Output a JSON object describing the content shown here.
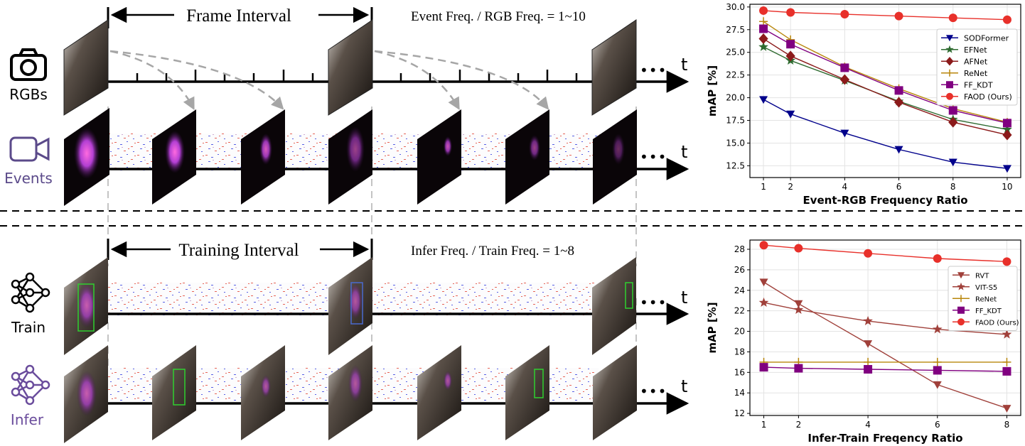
{
  "top": {
    "interval_label": "Frame Interval",
    "ratio_text": "Event Freq. / RGB Freq. = 1~10",
    "row1_label": "RGBs",
    "row2_label": "Events",
    "t_label": "t",
    "dots": "•••"
  },
  "bottom": {
    "interval_label": "Training Interval",
    "ratio_text": "Infer Freq. / Train Freq. = 1~8",
    "row1_label": "Train",
    "row2_label": "Infer",
    "t_label": "t",
    "dots": "•••"
  },
  "colors": {
    "events_purple": "#5b4a8a",
    "infer_purple": "#6a4c9c",
    "arrow_gray": "#a6a6a6"
  },
  "icons": [
    "camera-icon",
    "event-camera-icon",
    "neural-network-icon",
    "neural-network-purple-icon"
  ],
  "chart_data": [
    {
      "type": "line",
      "xlabel": "Event-RGB Frequency Ratio",
      "ylabel": "mAP [%]",
      "x": [
        1,
        2,
        4,
        6,
        8,
        10
      ],
      "xticks": [
        1,
        2,
        4,
        6,
        8,
        10
      ],
      "xlim": [
        0.5,
        10.5
      ],
      "ylim": [
        11.2,
        30.3
      ],
      "yticks": [
        12.5,
        15.0,
        17.5,
        20.0,
        22.5,
        25.0,
        27.5,
        30.0
      ],
      "grid": true,
      "legend_position": "right",
      "series": [
        {
          "name": "SODFormer",
          "marker": "tri-down",
          "color": "#00008b",
          "values": [
            19.8,
            18.2,
            16.1,
            14.3,
            12.9,
            12.2
          ]
        },
        {
          "name": "EFNet",
          "marker": "star",
          "color": "#2e6b30",
          "values": [
            25.6,
            24.1,
            21.9,
            19.6,
            17.6,
            16.5
          ]
        },
        {
          "name": "AFNet",
          "marker": "diamond",
          "color": "#8b1a1a",
          "values": [
            26.5,
            24.6,
            22.0,
            19.5,
            17.3,
            15.9
          ]
        },
        {
          "name": "ReNet",
          "marker": "plus",
          "color": "#b8860b",
          "values": [
            28.4,
            26.4,
            23.4,
            21.0,
            18.8,
            17.3
          ]
        },
        {
          "name": "FF_KDT",
          "marker": "square",
          "color": "#800080",
          "values": [
            27.6,
            25.9,
            23.3,
            20.8,
            18.6,
            17.2
          ]
        },
        {
          "name": "FAOD (Ours)",
          "marker": "circle",
          "color": "#e8302a",
          "values": [
            29.6,
            29.4,
            29.2,
            29.0,
            28.8,
            28.6
          ]
        }
      ]
    },
    {
      "type": "line",
      "xlabel": "Infer-Train Freqency Ratio",
      "ylabel": "mAP [%]",
      "x": [
        1,
        2,
        4,
        6,
        8
      ],
      "xticks": [
        1,
        2,
        4,
        6,
        8
      ],
      "xlim": [
        0.6,
        8.4
      ],
      "ylim": [
        11.8,
        28.9
      ],
      "yticks": [
        12,
        14,
        16,
        18,
        20,
        22,
        24,
        26,
        28
      ],
      "grid": true,
      "legend_position": "right",
      "series": [
        {
          "name": "RVT",
          "marker": "tri-down",
          "color": "#a0403a",
          "values": [
            24.8,
            22.7,
            18.8,
            14.8,
            12.5
          ]
        },
        {
          "name": "VIT-S5",
          "marker": "star",
          "color": "#a0403a",
          "values": [
            22.8,
            22.1,
            21.0,
            20.2,
            19.7
          ]
        },
        {
          "name": "ReNet",
          "marker": "plus",
          "color": "#b8860b",
          "values": [
            17.0,
            17.0,
            17.0,
            17.0,
            17.0
          ]
        },
        {
          "name": "FF_KDT",
          "marker": "square",
          "color": "#800080",
          "values": [
            16.5,
            16.4,
            16.3,
            16.2,
            16.1
          ]
        },
        {
          "name": "FAOD (Ours)",
          "marker": "circle",
          "color": "#e8302a",
          "values": [
            28.4,
            28.1,
            27.6,
            27.1,
            26.8
          ]
        }
      ]
    }
  ]
}
